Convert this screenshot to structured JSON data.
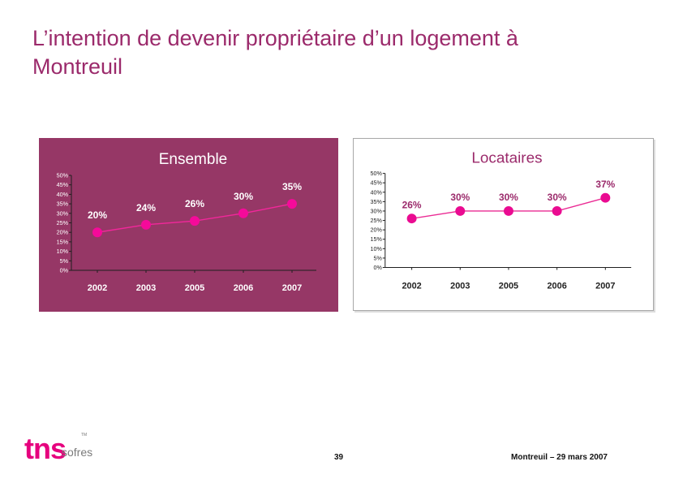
{
  "slide": {
    "title": "L’intention de devenir propriétaire d’un logement à Montreuil",
    "page_number": "39",
    "footer_text": "Montreuil – 29 mars 2007"
  },
  "logo": {
    "main_text": "tns",
    "sub_text": "sofres",
    "trademark": "TM"
  },
  "chart_data": [
    {
      "type": "line",
      "title": "Ensemble",
      "categories": [
        "2002",
        "2003",
        "2005",
        "2006",
        "2007"
      ],
      "values": [
        20,
        24,
        26,
        30,
        35
      ],
      "data_labels": [
        "20%",
        "24%",
        "26%",
        "30%",
        "35%"
      ],
      "yticks": [
        "0%",
        "5%",
        "10%",
        "15%",
        "20%",
        "25%",
        "30%",
        "35%",
        "40%",
        "45%",
        "50%"
      ],
      "ylim": [
        0,
        50
      ],
      "grid": false,
      "colors": {
        "background": "#963766",
        "title": "#ffffff",
        "axis": "#1f1f1f",
        "line": "#f2279b",
        "marker": "#f50a9a",
        "tick_label": "#ffffff",
        "data_label": "#ffffff"
      }
    },
    {
      "type": "line",
      "title": "Locataires",
      "categories": [
        "2002",
        "2003",
        "2005",
        "2006",
        "2007"
      ],
      "values": [
        26,
        30,
        30,
        30,
        37
      ],
      "data_labels": [
        "26%",
        "30%",
        "30%",
        "30%",
        "37%"
      ],
      "yticks": [
        "0%",
        "5%",
        "10%",
        "15%",
        "20%",
        "25%",
        "30%",
        "35%",
        "40%",
        "45%",
        "50%"
      ],
      "ylim": [
        0,
        50
      ],
      "grid": false,
      "colors": {
        "background": "#ffffff",
        "title": "#9b2a6b",
        "axis": "#1f1f1f",
        "line": "#ea2b94",
        "marker": "#ea0b91",
        "tick_label": "#222222",
        "data_label": "#9b2a6b"
      }
    }
  ]
}
